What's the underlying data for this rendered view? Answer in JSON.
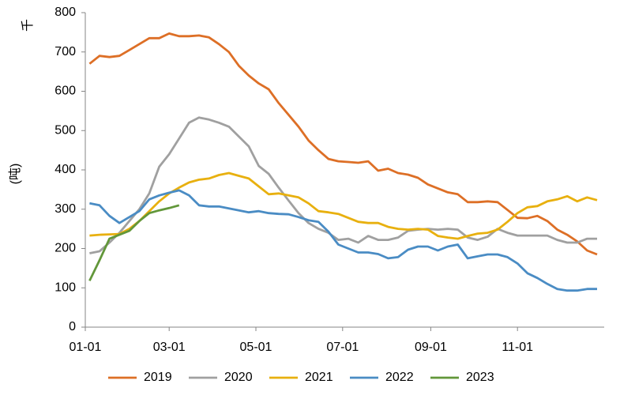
{
  "chart_data": {
    "type": "line",
    "y_unit": "千",
    "ylabel": "(吨)",
    "x": [
      3,
      10,
      17,
      24,
      31,
      38,
      45,
      52,
      59,
      66,
      73,
      80,
      87,
      94,
      101,
      108,
      115,
      122,
      129,
      136,
      143,
      150,
      157,
      164,
      171,
      178,
      185,
      192,
      199,
      206,
      213,
      220,
      227,
      234,
      241,
      248,
      255,
      262,
      269,
      276,
      283,
      290,
      297,
      304,
      311,
      318,
      325,
      332,
      339,
      346,
      353,
      360
    ],
    "xlim": [
      0,
      365
    ],
    "xticks": [
      {
        "value": 0,
        "label": "01-01"
      },
      {
        "value": 59,
        "label": "03-01"
      },
      {
        "value": 120,
        "label": "05-01"
      },
      {
        "value": 181,
        "label": "07-01"
      },
      {
        "value": 243,
        "label": "09-01"
      },
      {
        "value": 304,
        "label": "11-01"
      }
    ],
    "ylim": [
      0,
      800
    ],
    "yticks": [
      0,
      100,
      200,
      300,
      400,
      500,
      600,
      700,
      800
    ],
    "grid": false,
    "legend": "bottom",
    "series": [
      {
        "name": "2019",
        "color": "#dd6f26",
        "values": [
          670,
          690,
          687,
          690,
          705,
          720,
          735,
          735,
          747,
          740,
          740,
          742,
          737,
          720,
          700,
          665,
          640,
          620,
          605,
          570,
          540,
          510,
          475,
          450,
          428,
          422,
          420,
          418,
          422,
          398,
          403,
          392,
          388,
          380,
          363,
          353,
          343,
          338,
          318,
          318,
          320,
          318,
          298,
          278,
          277,
          283,
          270,
          248,
          235,
          218,
          195,
          185
        ]
      },
      {
        "name": "2020",
        "color": "#a0a0a0",
        "values": [
          188,
          193,
          215,
          240,
          270,
          300,
          340,
          408,
          440,
          480,
          520,
          533,
          528,
          520,
          510,
          485,
          460,
          410,
          390,
          355,
          322,
          290,
          265,
          250,
          240,
          222,
          225,
          215,
          232,
          222,
          222,
          228,
          245,
          248,
          250,
          248,
          250,
          248,
          228,
          222,
          230,
          250,
          240,
          233,
          233,
          233,
          233,
          222,
          215,
          215,
          225,
          225
        ]
      },
      {
        "name": "2021",
        "color": "#e8b00f",
        "values": [
          233,
          235,
          236,
          237,
          250,
          270,
          295,
          320,
          340,
          355,
          368,
          375,
          378,
          387,
          392,
          385,
          378,
          358,
          338,
          340,
          335,
          330,
          315,
          295,
          292,
          288,
          278,
          268,
          265,
          265,
          255,
          250,
          248,
          250,
          248,
          232,
          228,
          225,
          232,
          238,
          240,
          248,
          268,
          290,
          305,
          308,
          320,
          325,
          333,
          320,
          330,
          323
        ]
      },
      {
        "name": "2022",
        "color": "#4a8cc4",
        "values": [
          315,
          310,
          283,
          265,
          280,
          295,
          325,
          335,
          342,
          348,
          335,
          310,
          307,
          307,
          302,
          297,
          292,
          295,
          290,
          288,
          287,
          280,
          272,
          268,
          243,
          210,
          200,
          190,
          190,
          186,
          175,
          178,
          197,
          205,
          205,
          195,
          205,
          210,
          175,
          180,
          185,
          185,
          178,
          162,
          137,
          125,
          110,
          97,
          93,
          93,
          97,
          97
        ]
      },
      {
        "name": "2023",
        "color": "#62973a",
        "values": [
          118,
          170,
          225,
          235,
          245,
          270,
          290,
          297,
          303,
          310,
          null,
          null,
          null,
          null,
          null,
          null,
          null,
          null,
          null,
          null,
          null,
          null,
          null,
          null,
          null,
          null,
          null,
          null,
          null,
          null,
          null,
          null,
          null,
          null,
          null,
          null,
          null,
          null,
          null,
          null,
          null,
          null,
          null,
          null,
          null,
          null,
          null,
          null,
          null,
          null,
          null,
          null
        ]
      }
    ]
  }
}
